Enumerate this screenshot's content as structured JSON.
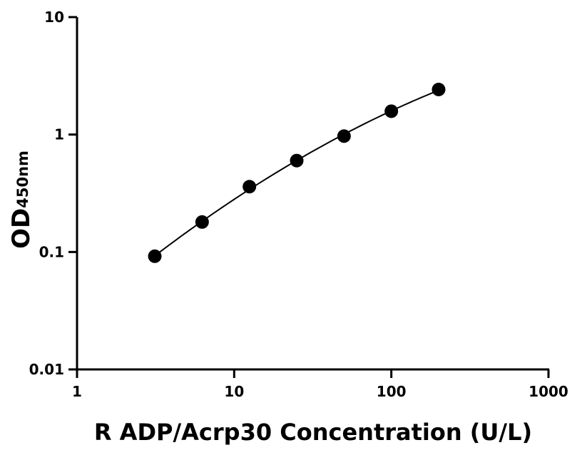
{
  "chart_data": {
    "type": "scatter",
    "title": "",
    "xlabel": "R ADP/Acrp30 Concentration (U/L)",
    "ylabel": {
      "main": "OD",
      "subscript": "450nm"
    },
    "xscale": "log",
    "yscale": "log",
    "xlim": [
      1,
      1000
    ],
    "ylim": [
      0.01,
      10
    ],
    "xticks": [
      1,
      10,
      100,
      1000
    ],
    "xtick_labels": [
      "1",
      "10",
      "100",
      "1000"
    ],
    "yticks": [
      0.01,
      0.1,
      1,
      10
    ],
    "ytick_labels": [
      "0.01",
      "0.1",
      "1",
      "10"
    ],
    "grid": false,
    "legend": "none",
    "series": [
      {
        "x": [
          3.125,
          6.25,
          12.5,
          25,
          50,
          100,
          200
        ],
        "y": [
          0.092,
          0.18,
          0.36,
          0.6,
          0.97,
          1.58,
          2.42
        ],
        "marker": "filled-circle",
        "fit_line": true
      }
    ],
    "colors": {
      "marker": "#000000",
      "line": "#000000",
      "axis": "#000000"
    }
  }
}
